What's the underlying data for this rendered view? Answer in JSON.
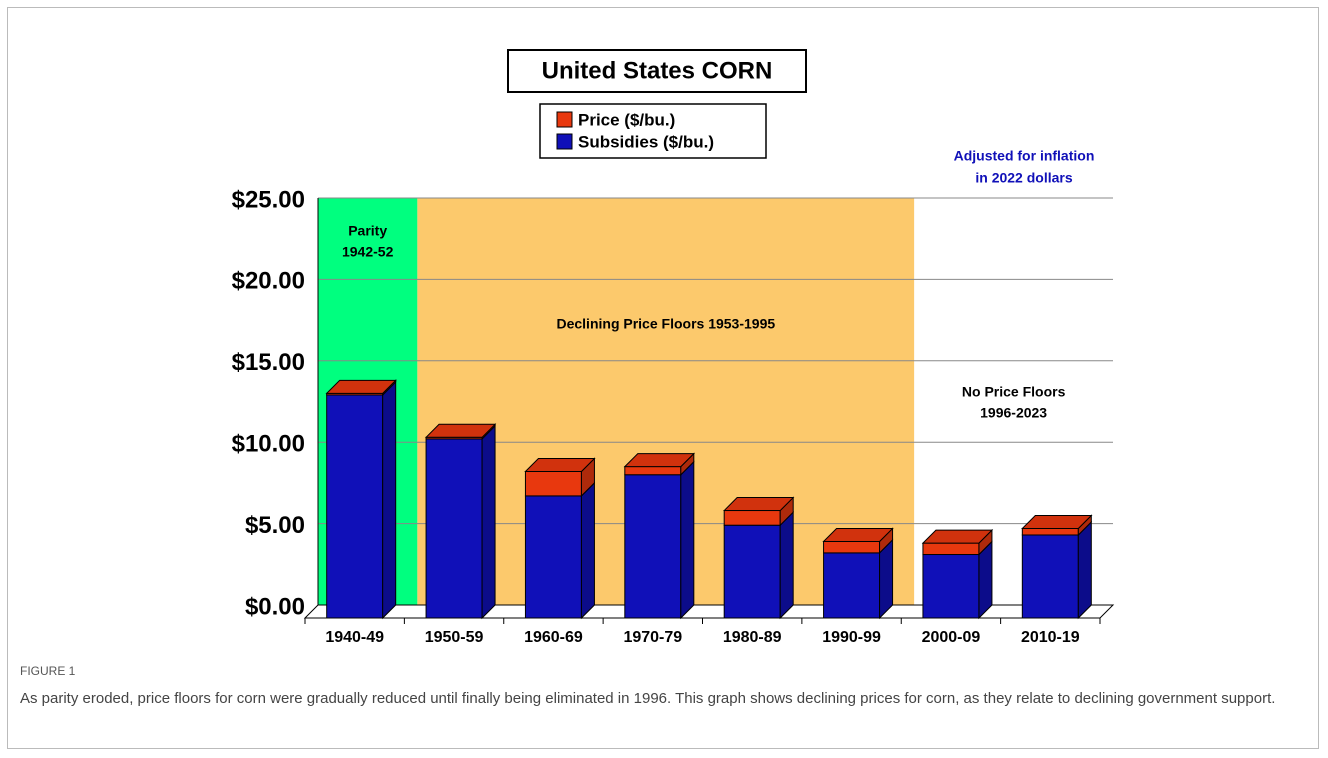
{
  "chart_data": {
    "type": "bar3d_stacked",
    "title": "United States CORN",
    "categories": [
      "1940-49",
      "1950-59",
      "1960-69",
      "1970-79",
      "1980-89",
      "1990-99",
      "2000-09",
      "2010-19"
    ],
    "series": [
      {
        "name": "Subsidies ($/bu.)",
        "color": "#1010b8",
        "values": [
          13.7,
          11.0,
          7.5,
          8.8,
          5.7,
          4.0,
          3.9,
          5.1
        ]
      },
      {
        "name": "Price ($/bu.)",
        "color": "#e8380e",
        "values": [
          0.1,
          0.1,
          1.5,
          0.5,
          0.9,
          0.7,
          0.7,
          0.4
        ]
      }
    ],
    "ylim": [
      0,
      25
    ],
    "yticks": [
      {
        "value": 0,
        "label": "$0.00"
      },
      {
        "value": 5,
        "label": "$5.00"
      },
      {
        "value": 10,
        "label": "$10.00"
      },
      {
        "value": 15,
        "label": "$15.00"
      },
      {
        "value": 20,
        "label": "$20.00"
      },
      {
        "value": 25,
        "label": "$25.00"
      }
    ],
    "grid": true,
    "regions": [
      {
        "lines": [
          "Parity",
          "1942-52"
        ],
        "color": "#00ff7f",
        "from": "1940-49",
        "to": "1940-49"
      },
      {
        "lines": [
          "Declining Price Floors 1953-1995"
        ],
        "color": "#fcc96c",
        "from": "1950-59",
        "to": "1990-99"
      },
      {
        "lines": [
          "No Price Floors",
          "1996-2023"
        ],
        "color": "#ffffff",
        "from": "2000-09",
        "to": "2010-19"
      }
    ],
    "note": [
      "Adjusted for inflation",
      "in 2022 dollars"
    ]
  },
  "caption": {
    "label": "FIGURE 1",
    "text": "As parity eroded, price floors for corn were gradually reduced until finally being eliminated in 1996. This graph shows declining prices for corn, as they relate to declining government support."
  }
}
